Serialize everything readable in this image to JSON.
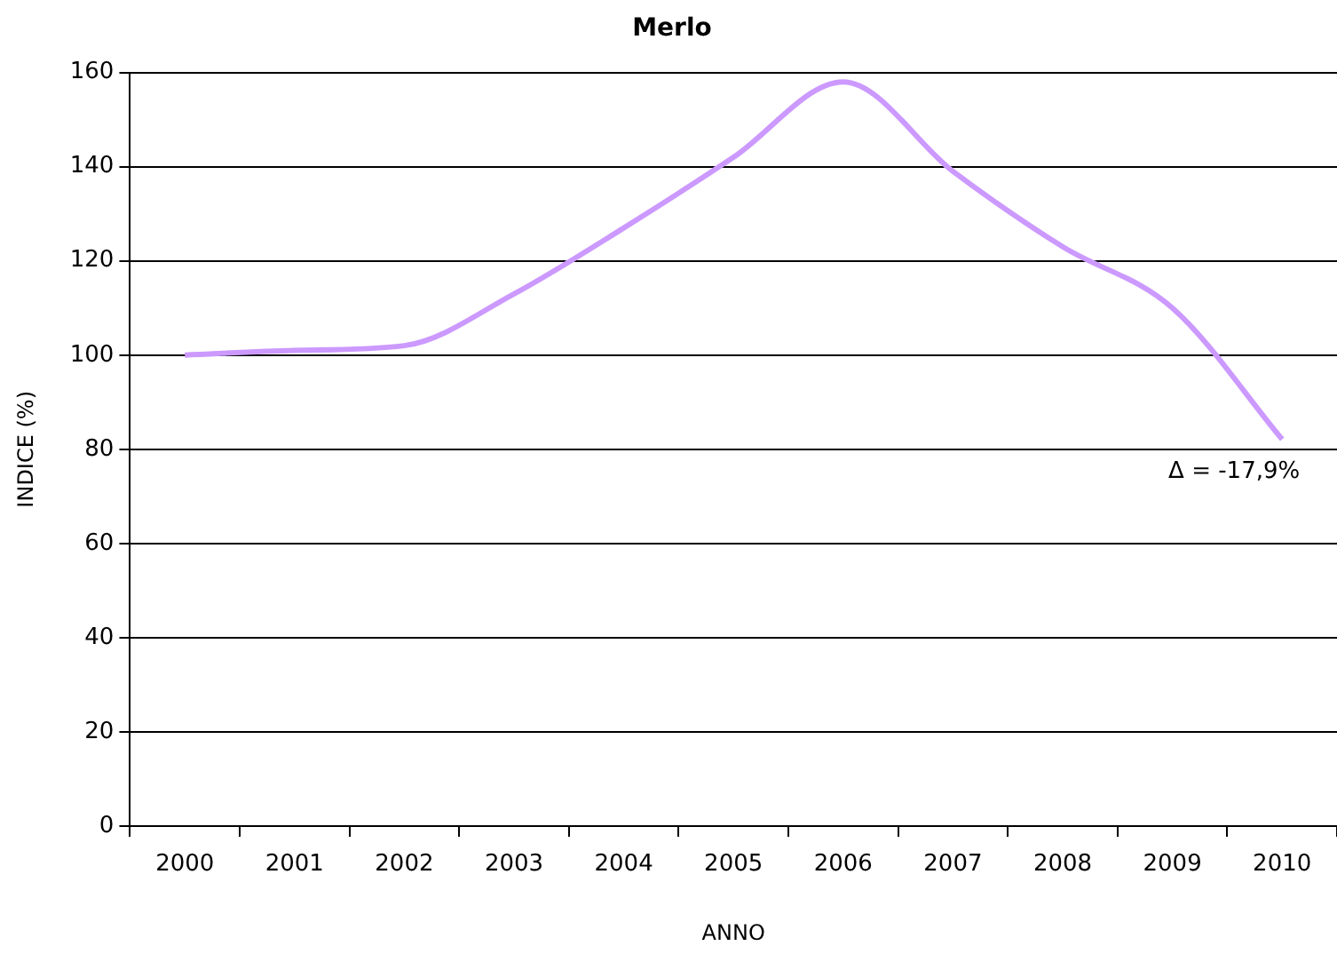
{
  "chart_data": {
    "type": "line",
    "title": "Merlo",
    "xlabel": "ANNO",
    "ylabel": "INDICE (%)",
    "categories": [
      "2000",
      "2001",
      "2002",
      "2003",
      "2004",
      "2005",
      "2006",
      "2007",
      "2008",
      "2009",
      "2010"
    ],
    "series": [
      {
        "color": "#cc99ff",
        "values": [
          100,
          101,
          102,
          113,
          127,
          142,
          158,
          139,
          123,
          110,
          82.1
        ]
      }
    ],
    "ylim": [
      0,
      160
    ],
    "yticks": [
      0,
      20,
      40,
      60,
      80,
      100,
      120,
      140,
      160
    ],
    "grid": "y",
    "legend": false,
    "marker": "none",
    "line_style": "solid",
    "annotations": [
      {
        "text": "Δ = -17,9%",
        "x": "2010",
        "y": 82.1
      }
    ]
  }
}
